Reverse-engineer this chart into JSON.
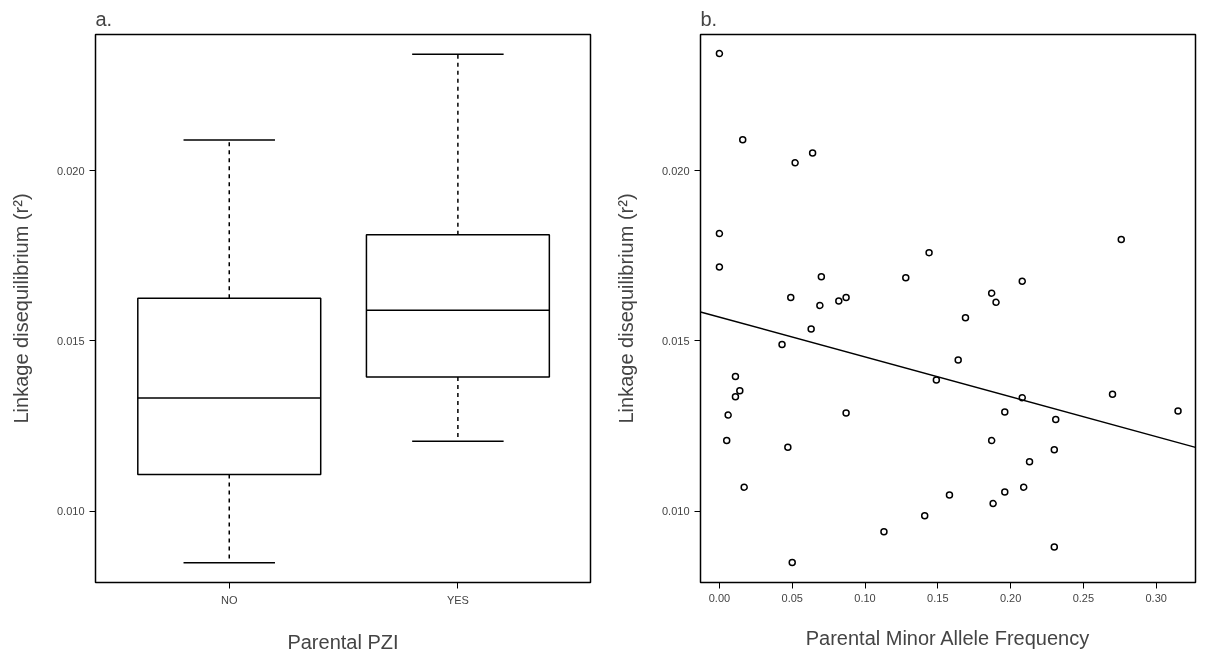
{
  "chart_data": [
    {
      "type": "box",
      "title": "a.",
      "xlabel": "Parental PZI",
      "ylabel": "Linkage disequilibrium (r²)",
      "categories": [
        "NO",
        "YES"
      ],
      "boxes": [
        {
          "low": 0.00848,
          "q1": 0.01107,
          "median": 0.01332,
          "q3": 0.01625,
          "high": 0.0209
        },
        {
          "low": 0.01205,
          "q1": 0.01394,
          "median": 0.0159,
          "q3": 0.01812,
          "high": 0.02342
        }
      ],
      "ylim": [
        0.0079,
        0.024
      ],
      "yticks": [
        {
          "value": 0.01,
          "label": "0.010"
        },
        {
          "value": 0.015,
          "label": "0.015"
        },
        {
          "value": 0.02,
          "label": "0.020"
        }
      ]
    },
    {
      "type": "scatter",
      "title": "b.",
      "xlabel": "Parental Minor Allele Frequency",
      "ylabel": "Linkage disequilibrium (r²)",
      "series": [
        {
          "type": "scatter",
          "marker": "circle",
          "color": "#000000",
          "x": [
            0.0,
            0.016,
            0.052,
            0.064,
            0.0,
            0.0,
            0.07,
            0.049,
            0.069,
            0.082,
            0.087,
            0.128,
            0.144,
            0.276,
            0.208,
            0.187,
            0.19,
            0.169,
            0.063,
            0.043,
            0.164,
            0.149,
            0.011,
            0.014,
            0.011,
            0.006,
            0.005,
            0.047,
            0.087,
            0.017,
            0.05,
            0.113,
            0.141,
            0.158,
            0.188,
            0.196,
            0.209,
            0.196,
            0.187,
            0.208,
            0.231,
            0.23,
            0.213,
            0.23,
            0.27,
            0.315
          ],
          "values": [
            0.02344,
            0.02091,
            0.02023,
            0.02052,
            0.01815,
            0.01717,
            0.01688,
            0.01627,
            0.01604,
            0.01617,
            0.01627,
            0.01685,
            0.01759,
            0.01798,
            0.01675,
            0.0164,
            0.01613,
            0.01568,
            0.01535,
            0.01489,
            0.01444,
            0.01385,
            0.01395,
            0.01353,
            0.01336,
            0.01282,
            0.01207,
            0.01187,
            0.01288,
            0.0107,
            0.00849,
            0.00939,
            0.00986,
            0.01047,
            0.01022,
            0.01056,
            0.0107,
            0.01291,
            0.01207,
            0.01333,
            0.01269,
            0.0118,
            0.01145,
            0.00894,
            0.01343,
            0.01294
          ]
        },
        {
          "type": "line",
          "marker": "none",
          "color": "#000000",
          "x": [
            -0.013,
            0.327
          ],
          "values": [
            0.01585,
            0.01187
          ]
        }
      ],
      "xlim": [
        -0.013,
        0.327
      ],
      "xticks": [
        {
          "value": 0,
          "label": "0.00"
        },
        {
          "value": 0.05,
          "label": "0.05"
        },
        {
          "value": 0.1,
          "label": "0.10"
        },
        {
          "value": 0.15,
          "label": "0.15"
        },
        {
          "value": 0.2,
          "label": "0.20"
        },
        {
          "value": 0.25,
          "label": "0.25"
        },
        {
          "value": 0.3,
          "label": "0.30"
        }
      ],
      "ylim": [
        0.0079,
        0.024
      ],
      "yticks": [
        {
          "value": 0.01,
          "label": "0.010"
        },
        {
          "value": 0.015,
          "label": "0.015"
        },
        {
          "value": 0.02,
          "label": "0.020"
        }
      ]
    }
  ]
}
